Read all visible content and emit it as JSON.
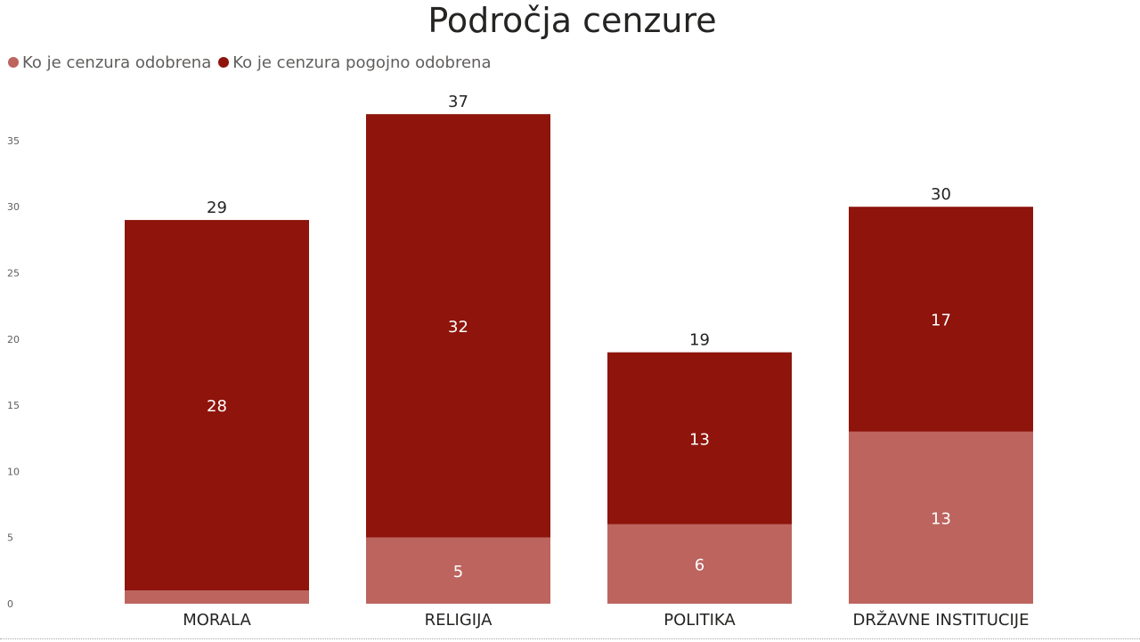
{
  "chart_data": {
    "type": "bar",
    "stacked": true,
    "title": "Področja cenzure",
    "categories": [
      "MORALA",
      "RELIGIJA",
      "POLITIKA",
      "DRŽAVNE INSTITUCIJE"
    ],
    "series": [
      {
        "name": "Ko je cenzura odobrena",
        "color": "#bd645f",
        "values": [
          1,
          5,
          6,
          13
        ],
        "labels": [
          "",
          "5",
          "6",
          "13"
        ]
      },
      {
        "name": "Ko je cenzura pogojno odobrena",
        "color": "#8e140c",
        "values": [
          28,
          32,
          13,
          17
        ],
        "labels": [
          "28",
          "32",
          "13",
          "17"
        ]
      }
    ],
    "totals": [
      29,
      37,
      19,
      30
    ],
    "y_ticks": [
      0,
      5,
      10,
      15,
      20,
      25,
      30,
      35
    ],
    "ylim": [
      0,
      37
    ],
    "xlabel": "",
    "ylabel": "",
    "grid": false,
    "legend_position": "top-left"
  }
}
